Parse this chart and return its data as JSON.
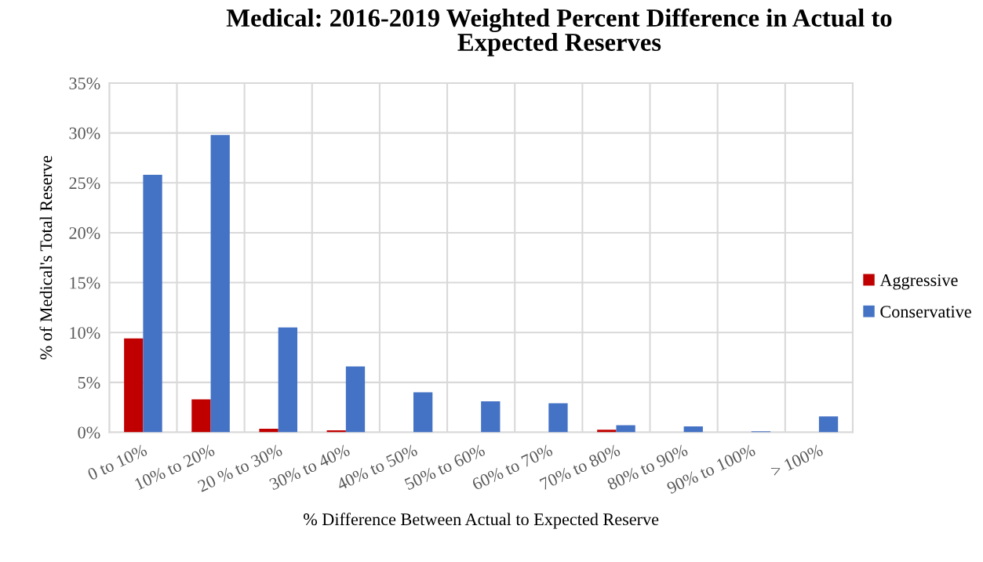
{
  "chart_data": {
    "type": "bar",
    "title": "Medical: 2016-2019 Weighted Percent Difference in Actual to\nExpected Reserves",
    "xlabel": "% Difference Between Actual to Expected Reserve",
    "ylabel": "% of Medical's Total Reserve",
    "categories": [
      "0 to 10%",
      "10% to 20%",
      "20 % to 30%",
      "30% to 40%",
      "40% to 50%",
      "50% to 60%",
      "60% to 70%",
      "70% to 80%",
      "80% to 90%",
      "90% to 100%",
      "> 100%"
    ],
    "series": [
      {
        "name": "Aggressive",
        "color": "#c00000",
        "values": [
          9.4,
          3.3,
          0.35,
          0.2,
          null,
          null,
          null,
          0.25,
          null,
          null,
          null
        ]
      },
      {
        "name": "Conservative",
        "color": "#4472c4",
        "values": [
          25.8,
          29.8,
          10.5,
          6.6,
          4.0,
          3.1,
          2.9,
          0.7,
          0.6,
          0.1,
          1.6
        ]
      }
    ],
    "ylim": [
      0,
      35
    ],
    "yticks": [
      {
        "value": 0,
        "label": "0%"
      },
      {
        "value": 5,
        "label": "5%"
      },
      {
        "value": 10,
        "label": "10%"
      },
      {
        "value": 15,
        "label": "15%"
      },
      {
        "value": 20,
        "label": "20%"
      },
      {
        "value": 25,
        "label": "25%"
      },
      {
        "value": 30,
        "label": "30%"
      },
      {
        "value": 35,
        "label": "35%"
      }
    ],
    "grid": true,
    "legend": "right"
  }
}
